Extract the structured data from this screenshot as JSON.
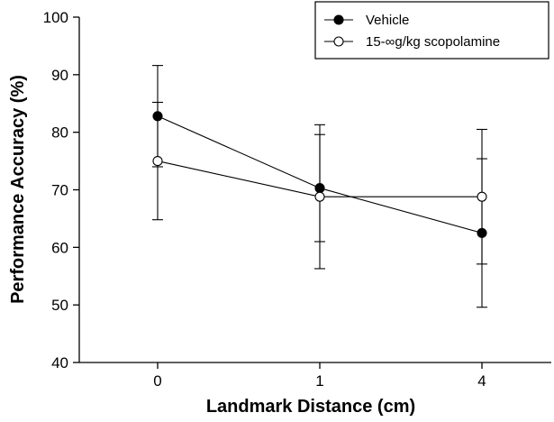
{
  "chart_data": {
    "type": "line",
    "categories": [
      "0",
      "1",
      "4"
    ],
    "xlabel": "Landmark Distance (cm)",
    "ylabel": "Performance Accuracy (%)",
    "ylim": [
      40,
      100
    ],
    "yticks": [
      40,
      50,
      60,
      70,
      80,
      90,
      100
    ],
    "legend_position": "top-right",
    "grid": false,
    "series": [
      {
        "name": "Vehicle",
        "marker": "filled-circle",
        "color": "#000000",
        "values": [
          82.8,
          70.3,
          62.5
        ],
        "error": [
          8.8,
          9.3,
          12.9
        ]
      },
      {
        "name": "15-∞g/kg scopolamine",
        "marker": "open-circle",
        "color": "#000000",
        "values": [
          75.0,
          68.8,
          68.8
        ],
        "error": [
          10.2,
          12.5,
          11.7
        ]
      }
    ]
  }
}
